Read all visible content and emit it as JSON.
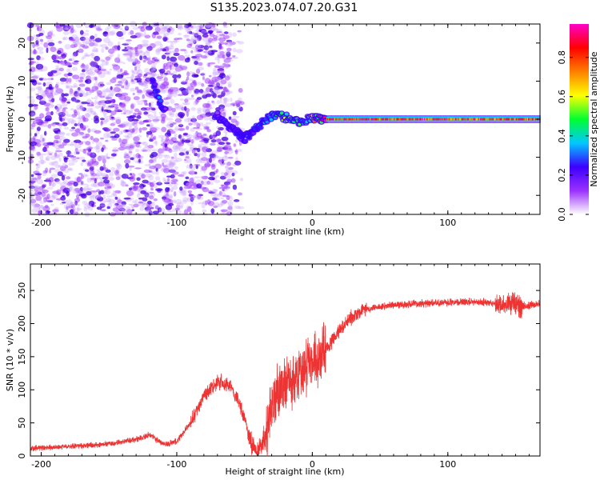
{
  "figure": {
    "title": "S135.2023.074.07.20.G31"
  },
  "chart_data": [
    {
      "type": "heatmap",
      "xlabel": "Height of straight line (km)",
      "ylabel": "Frequency (Hz)",
      "xlim": [
        -208,
        168
      ],
      "ylim": [
        -25,
        25
      ],
      "x_ticks": [
        -200,
        -100,
        0,
        100
      ],
      "y_ticks": [
        -20,
        -10,
        0,
        10,
        20
      ],
      "colorbar": {
        "label": "Normalized spectral amplitude",
        "range": [
          0,
          0.97
        ],
        "ticks": [
          0.0,
          0.2,
          0.4,
          0.6,
          0.8
        ],
        "colormap": [
          "#ffffff",
          "#9b30ff",
          "#3c00ff",
          "#00c8ff",
          "#00ff30",
          "#ffff00",
          "#ff7f00",
          "#ff0000",
          "#ff00c8"
        ]
      },
      "noise_region": {
        "x_from": -208,
        "x_to": -52,
        "typical_amplitude": 0.1
      },
      "ridge": [
        {
          "x": -118,
          "f": 10,
          "a": 0.25
        },
        {
          "x": -114,
          "f": 6,
          "a": 0.3
        },
        {
          "x": -110,
          "f": 2,
          "a": 0.2
        },
        {
          "x": -70,
          "f": 1,
          "a": 0.15
        },
        {
          "x": -62,
          "f": -2,
          "a": 0.2
        },
        {
          "x": -50,
          "f": -5,
          "a": 0.25
        },
        {
          "x": -40,
          "f": -2,
          "a": 0.3
        },
        {
          "x": -30,
          "f": 1,
          "a": 0.4
        },
        {
          "x": -20,
          "f": 0.5,
          "a": 0.5
        },
        {
          "x": -10,
          "f": -1,
          "a": 0.5
        },
        {
          "x": 0,
          "f": 0.5,
          "a": 0.6
        },
        {
          "x": 10,
          "f": 0,
          "a": 0.9
        },
        {
          "x": 168,
          "f": 0,
          "a": 0.85
        }
      ]
    },
    {
      "type": "line",
      "xlabel": "Height of straight line (km)",
      "ylabel": "SNR (10 * v/v)",
      "xlim": [
        -208,
        168
      ],
      "ylim": [
        0,
        290
      ],
      "x_ticks": [
        -200,
        -100,
        0,
        100
      ],
      "y_ticks": [
        0,
        50,
        100,
        150,
        200,
        250
      ],
      "color": "#ee3333",
      "series": [
        {
          "values": [
            {
              "x": -208,
              "y": 12
            },
            {
              "x": -180,
              "y": 14
            },
            {
              "x": -150,
              "y": 18
            },
            {
              "x": -130,
              "y": 25
            },
            {
              "x": -120,
              "y": 32
            },
            {
              "x": -110,
              "y": 18
            },
            {
              "x": -100,
              "y": 22
            },
            {
              "x": -90,
              "y": 50
            },
            {
              "x": -80,
              "y": 90
            },
            {
              "x": -70,
              "y": 112
            },
            {
              "x": -62,
              "y": 110
            },
            {
              "x": -55,
              "y": 85
            },
            {
              "x": -50,
              "y": 55
            },
            {
              "x": -45,
              "y": 20
            },
            {
              "x": -40,
              "y": 5
            },
            {
              "x": -35,
              "y": 30
            },
            {
              "x": -30,
              "y": 80
            },
            {
              "x": -20,
              "y": 110
            },
            {
              "x": -10,
              "y": 125
            },
            {
              "x": 0,
              "y": 140
            },
            {
              "x": 10,
              "y": 160
            },
            {
              "x": 20,
              "y": 190
            },
            {
              "x": 30,
              "y": 212
            },
            {
              "x": 40,
              "y": 222
            },
            {
              "x": 60,
              "y": 228
            },
            {
              "x": 80,
              "y": 230
            },
            {
              "x": 100,
              "y": 232
            },
            {
              "x": 120,
              "y": 233
            },
            {
              "x": 140,
              "y": 230
            },
            {
              "x": 147,
              "y": 232
            },
            {
              "x": 155,
              "y": 225
            },
            {
              "x": 168,
              "y": 230
            }
          ]
        }
      ]
    }
  ]
}
